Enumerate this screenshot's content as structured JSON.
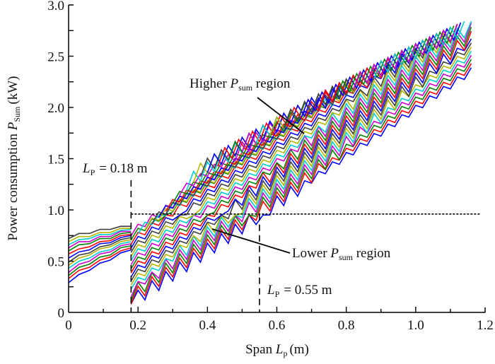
{
  "chart_data": {
    "type": "line",
    "title": "",
    "xlabel": {
      "main": "Span ",
      "var": "L",
      "sub": "p",
      "unit": "(m)"
    },
    "ylabel": {
      "main": "Power consumption ",
      "var": "P",
      "sub": "Sum",
      "unit": "(kW)"
    },
    "xlim": [
      0,
      1.2
    ],
    "ylim": [
      0,
      3.0
    ],
    "xticks": [
      0,
      0.2,
      0.4,
      0.6,
      0.8,
      1.0,
      1.2
    ],
    "xtick_labels": [
      "0",
      "0.2",
      "0.4",
      "0.6",
      "0.8",
      "1.0",
      "1.2"
    ],
    "yticks": [
      0,
      0.5,
      1.0,
      1.5,
      2.0,
      2.5,
      3.0
    ],
    "ytick_labels": [
      "0",
      "0.5",
      "1.0",
      "1.5",
      "2.0",
      "2.5",
      "3.0"
    ],
    "grid": false,
    "colors": [
      "#0000ff",
      "#ff0000",
      "#008000",
      "#cc00cc",
      "#00cccc",
      "#b5b500",
      "#404040"
    ],
    "annotations": {
      "lp_018": {
        "var": "L",
        "sub": "P",
        "text": "= 0.18 m",
        "x": 0.18
      },
      "lp_055": {
        "var": "L",
        "sub": "P",
        "text": "= 0.55 m",
        "x": 0.55
      },
      "higher": {
        "pre": "Higher ",
        "var": "P",
        "sub": "sum",
        "post": " region"
      },
      "lower": {
        "pre": "Lower ",
        "var": "P",
        "sub": "sum",
        "post": " region"
      },
      "threshold_y": 0.96
    },
    "pre_series": {
      "x": [
        0,
        0.03,
        0.06,
        0.09,
        0.12,
        0.15,
        0.18
      ],
      "series": [
        {
          "name": "s1",
          "values": [
            0.3,
            0.36,
            0.42,
            0.47,
            0.52,
            0.57,
            0.62
          ]
        },
        {
          "name": "s2",
          "values": [
            0.34,
            0.4,
            0.45,
            0.5,
            0.55,
            0.59,
            0.64
          ]
        },
        {
          "name": "s3",
          "values": [
            0.37,
            0.43,
            0.48,
            0.53,
            0.57,
            0.62,
            0.66
          ]
        },
        {
          "name": "s4",
          "values": [
            0.4,
            0.46,
            0.51,
            0.56,
            0.6,
            0.64,
            0.68
          ]
        },
        {
          "name": "s5",
          "values": [
            0.44,
            0.49,
            0.54,
            0.58,
            0.62,
            0.66,
            0.7
          ]
        },
        {
          "name": "s6",
          "values": [
            0.47,
            0.52,
            0.57,
            0.61,
            0.65,
            0.68,
            0.72
          ]
        },
        {
          "name": "s7",
          "values": [
            0.5,
            0.55,
            0.59,
            0.63,
            0.67,
            0.7,
            0.74
          ]
        },
        {
          "name": "s8",
          "values": [
            0.54,
            0.58,
            0.62,
            0.66,
            0.69,
            0.72,
            0.76
          ]
        },
        {
          "name": "s9",
          "values": [
            0.58,
            0.61,
            0.65,
            0.68,
            0.71,
            0.74,
            0.77
          ]
        },
        {
          "name": "s10",
          "values": [
            0.61,
            0.65,
            0.68,
            0.71,
            0.73,
            0.76,
            0.79
          ]
        },
        {
          "name": "s11",
          "values": [
            0.64,
            0.68,
            0.7,
            0.73,
            0.75,
            0.78,
            0.8
          ]
        },
        {
          "name": "s12",
          "values": [
            0.67,
            0.7,
            0.73,
            0.75,
            0.77,
            0.79,
            0.82
          ]
        },
        {
          "name": "s13",
          "values": [
            0.7,
            0.73,
            0.75,
            0.77,
            0.79,
            0.81,
            0.83
          ]
        },
        {
          "name": "s14",
          "values": [
            0.73,
            0.76,
            0.78,
            0.8,
            0.82,
            0.83,
            0.85
          ]
        }
      ]
    },
    "post_series": [
      {
        "name": "p1",
        "start": 0.18,
        "y0": 0.1
      },
      {
        "name": "p2",
        "start": 0.18,
        "y0": 0.14
      },
      {
        "name": "p3",
        "start": 0.18,
        "y0": 0.18
      },
      {
        "name": "p4",
        "start": 0.18,
        "y0": 0.22
      },
      {
        "name": "p5",
        "start": 0.18,
        "y0": 0.26
      },
      {
        "name": "p6",
        "start": 0.18,
        "y0": 0.3
      },
      {
        "name": "p7",
        "start": 0.18,
        "y0": 0.34
      },
      {
        "name": "p8",
        "start": 0.18,
        "y0": 0.38
      },
      {
        "name": "p9",
        "start": 0.18,
        "y0": 0.42
      },
      {
        "name": "p10",
        "start": 0.18,
        "y0": 0.46
      },
      {
        "name": "p11",
        "start": 0.18,
        "y0": 0.5
      },
      {
        "name": "p12",
        "start": 0.18,
        "y0": 0.54
      },
      {
        "name": "p13",
        "start": 0.18,
        "y0": 0.58
      },
      {
        "name": "p14",
        "start": 0.18,
        "y0": 0.62
      },
      {
        "name": "p15",
        "start": 0.18,
        "y0": 0.66
      },
      {
        "name": "p16",
        "start": 0.18,
        "y0": 0.7
      },
      {
        "name": "p17",
        "start": 0.18,
        "y0": 0.74
      },
      {
        "name": "p18",
        "start": 0.18,
        "y0": 0.78
      },
      {
        "name": "p19",
        "start": 0.2,
        "y0": 0.8
      },
      {
        "name": "p20",
        "start": 0.22,
        "y0": 0.84
      },
      {
        "name": "p21",
        "start": 0.24,
        "y0": 0.9
      },
      {
        "name": "p22",
        "start": 0.26,
        "y0": 0.96
      },
      {
        "name": "p23",
        "start": 0.28,
        "y0": 1.02
      },
      {
        "name": "p24",
        "start": 0.3,
        "y0": 1.1
      },
      {
        "name": "p25",
        "start": 0.32,
        "y0": 1.18
      },
      {
        "name": "p26",
        "start": 0.34,
        "y0": 1.26
      },
      {
        "name": "p27",
        "start": 0.36,
        "y0": 1.34
      },
      {
        "name": "p28",
        "start": 0.38,
        "y0": 1.42
      },
      {
        "name": "p29",
        "start": 0.4,
        "y0": 1.5
      },
      {
        "name": "p30",
        "start": 0.43,
        "y0": 1.6
      },
      {
        "name": "p31",
        "start": 0.46,
        "y0": 1.7
      },
      {
        "name": "p32",
        "start": 0.5,
        "y0": 1.82
      },
      {
        "name": "p33",
        "start": 0.54,
        "y0": 1.94
      },
      {
        "name": "p34",
        "start": 0.58,
        "y0": 2.05
      },
      {
        "name": "p35",
        "start": 0.62,
        "y0": 2.16
      },
      {
        "name": "p36",
        "start": 0.67,
        "y0": 2.28
      },
      {
        "name": "p37",
        "start": 0.72,
        "y0": 2.38
      },
      {
        "name": "p38",
        "start": 0.77,
        "y0": 2.46
      },
      {
        "name": "p39",
        "start": 0.82,
        "y0": 2.54
      },
      {
        "name": "p40",
        "start": 0.88,
        "y0": 2.62
      }
    ]
  }
}
